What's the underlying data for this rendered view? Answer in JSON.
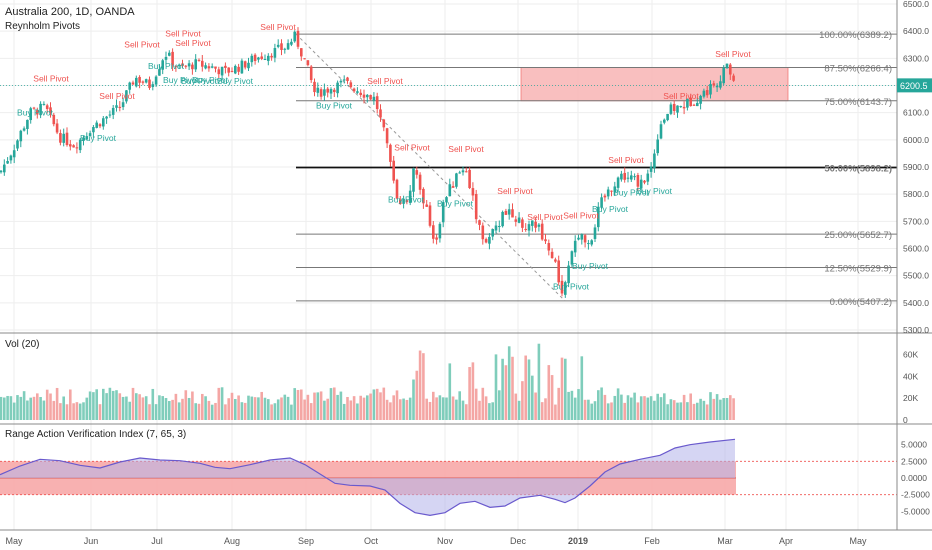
{
  "header": {
    "symbol": "Australia 200, 1D, OANDA",
    "indicator": "Reynholm Pivots"
  },
  "colors": {
    "up": "#26a69a",
    "down": "#ef5350",
    "sell_label": "#ef5350",
    "buy_label": "#26a69a",
    "zone_fill": "#f8b4b4",
    "osc_fill": "#b3b3ea",
    "osc_line": "#6a5acd",
    "grid": "#eeeeee",
    "axis_text": "#555555",
    "price_tag": "#26a69a"
  },
  "chart_data": [
    {
      "type": "candlestick",
      "ylim": [
        5300,
        6500
      ],
      "y_ticks": [
        "6500.0",
        "6400.0",
        "6300.0",
        "6200.0",
        "6100.0",
        "6000.0",
        "5900.0",
        "5800.0",
        "5700.0",
        "5600.0",
        "5500.0",
        "5400.0",
        "5300.0"
      ],
      "x_ticks": [
        "May",
        "Jun",
        "Jul",
        "Aug",
        "Sep",
        "Oct",
        "Nov",
        "Dec",
        "2019",
        "Feb",
        "Mar",
        "Apr",
        "May"
      ],
      "last_price": "6200.5",
      "close_path": [
        [
          0,
          5880
        ],
        [
          15,
          5980
        ],
        [
          30,
          6100
        ],
        [
          45,
          6120
        ],
        [
          60,
          6010
        ],
        [
          75,
          5980
        ],
        [
          90,
          6040
        ],
        [
          105,
          6080
        ],
        [
          120,
          6120
        ],
        [
          135,
          6230
        ],
        [
          150,
          6200
        ],
        [
          165,
          6320
        ],
        [
          180,
          6260
        ],
        [
          195,
          6280
        ],
        [
          210,
          6270
        ],
        [
          225,
          6250
        ],
        [
          240,
          6270
        ],
        [
          255,
          6300
        ],
        [
          270,
          6320
        ],
        [
          285,
          6340
        ],
        [
          295,
          6380
        ],
        [
          305,
          6290
        ],
        [
          315,
          6170
        ],
        [
          330,
          6190
        ],
        [
          345,
          6210
        ],
        [
          360,
          6180
        ],
        [
          375,
          6150
        ],
        [
          385,
          6010
        ],
        [
          395,
          5810
        ],
        [
          405,
          5760
        ],
        [
          415,
          5900
        ],
        [
          425,
          5760
        ],
        [
          435,
          5620
        ],
        [
          445,
          5790
        ],
        [
          455,
          5850
        ],
        [
          465,
          5910
        ],
        [
          475,
          5740
        ],
        [
          485,
          5620
        ],
        [
          495,
          5670
        ],
        [
          505,
          5740
        ],
        [
          515,
          5720
        ],
        [
          525,
          5660
        ],
        [
          535,
          5700
        ],
        [
          545,
          5630
        ],
        [
          555,
          5540
        ],
        [
          563,
          5420
        ],
        [
          570,
          5560
        ],
        [
          580,
          5660
        ],
        [
          590,
          5620
        ],
        [
          600,
          5760
        ],
        [
          610,
          5820
        ],
        [
          620,
          5870
        ],
        [
          630,
          5860
        ],
        [
          640,
          5840
        ],
        [
          650,
          5880
        ],
        [
          660,
          6060
        ],
        [
          670,
          6110
        ],
        [
          680,
          6120
        ],
        [
          690,
          6140
        ],
        [
          700,
          6160
        ],
        [
          710,
          6190
        ],
        [
          720,
          6230
        ],
        [
          728,
          6270
        ],
        [
          736,
          6200
        ]
      ],
      "fib_levels": [
        {
          "label": "100.00%(6389.2)",
          "value": 6389.2
        },
        {
          "label": "87.50%(6266.4)",
          "value": 6266.4
        },
        {
          "label": "75.00%(6143.7)",
          "value": 6143.7
        },
        {
          "label": "50.00%(5898.2)",
          "value": 5898.2,
          "bold": true
        },
        {
          "label": "25.00%(5652.7)",
          "value": 5652.7
        },
        {
          "label": "12.50%(5529.9)",
          "value": 5529.9
        },
        {
          "label": "0.00%(5407.2)",
          "value": 5407.2
        }
      ],
      "zone": {
        "from_price": 6143.7,
        "to_price": 6266.4
      },
      "pivots": [
        {
          "type": "Sell Pivot",
          "x": 51,
          "price": 6215
        },
        {
          "type": "Buy Pivot",
          "x": 35,
          "price": 6090
        },
        {
          "type": "Sell Pivot",
          "x": 117,
          "price": 6150
        },
        {
          "type": "Buy Pivot",
          "x": 98,
          "price": 5995
        },
        {
          "type": "Sell Pivot",
          "x": 142,
          "price": 6340
        },
        {
          "type": "Sell Pivot",
          "x": 183,
          "price": 6380
        },
        {
          "type": "Sell Pivot",
          "x": 193,
          "price": 6345
        },
        {
          "type": "Buy Pivot",
          "x": 166,
          "price": 6260
        },
        {
          "type": "Buy Pivot",
          "x": 181,
          "price": 6210
        },
        {
          "type": "Buy Pivot",
          "x": 199,
          "price": 6205
        },
        {
          "type": "Buy Pivot",
          "x": 210,
          "price": 6210
        },
        {
          "type": "Sell Pivot",
          "x": 278,
          "price": 6405
        },
        {
          "type": "Buy Pivot",
          "x": 235,
          "price": 6205
        },
        {
          "type": "Buy Pivot",
          "x": 334,
          "price": 6115
        },
        {
          "type": "Sell Pivot",
          "x": 385,
          "price": 6205
        },
        {
          "type": "Sell Pivot",
          "x": 412,
          "price": 5960
        },
        {
          "type": "Sell Pivot",
          "x": 466,
          "price": 5955
        },
        {
          "type": "Buy Pivot",
          "x": 406,
          "price": 5770
        },
        {
          "type": "Buy Pivot",
          "x": 455,
          "price": 5755
        },
        {
          "type": "Sell Pivot",
          "x": 515,
          "price": 5800
        },
        {
          "type": "Sell Pivot",
          "x": 545,
          "price": 5705
        },
        {
          "type": "Sell Pivot",
          "x": 581,
          "price": 5710
        },
        {
          "type": "Buy Pivot",
          "x": 590,
          "price": 5525
        },
        {
          "type": "Buy Pivot",
          "x": 571,
          "price": 5450
        },
        {
          "type": "Sell Pivot",
          "x": 626,
          "price": 5915
        },
        {
          "type": "Buy Pivot",
          "x": 610,
          "price": 5735
        },
        {
          "type": "Buy Pivot",
          "x": 631,
          "price": 5795
        },
        {
          "type": "Buy Pivot",
          "x": 654,
          "price": 5800
        },
        {
          "type": "Sell Pivot",
          "x": 681,
          "price": 6150
        },
        {
          "type": "Sell Pivot",
          "x": 733,
          "price": 6305
        }
      ]
    },
    {
      "type": "bar",
      "title": "Vol (20)",
      "ylim": [
        0,
        75000
      ],
      "y_ticks": [
        "60K",
        "40K",
        "20K",
        "0"
      ]
    },
    {
      "type": "area",
      "title": "Range Action Verification Index (7, 65, 3)",
      "ylim": [
        -7.5,
        7.5
      ],
      "y_ticks": [
        "5.0000",
        "2.5000",
        "0.0000",
        "-2.5000",
        "-5.0000"
      ],
      "band": [
        -2.5,
        2.5
      ],
      "points": [
        [
          0,
          0.5
        ],
        [
          20,
          1.8
        ],
        [
          40,
          2.8
        ],
        [
          60,
          2.6
        ],
        [
          80,
          1.9
        ],
        [
          100,
          1.5
        ],
        [
          120,
          2.4
        ],
        [
          140,
          3.0
        ],
        [
          160,
          2.7
        ],
        [
          180,
          2.6
        ],
        [
          200,
          2.2
        ],
        [
          215,
          1.6
        ],
        [
          230,
          1.4
        ],
        [
          250,
          2.0
        ],
        [
          270,
          2.7
        ],
        [
          290,
          3.0
        ],
        [
          305,
          2.0
        ],
        [
          320,
          0.6
        ],
        [
          335,
          -0.8
        ],
        [
          350,
          -1.1
        ],
        [
          370,
          -1.2
        ],
        [
          385,
          -1.8
        ],
        [
          400,
          -3.8
        ],
        [
          415,
          -5.2
        ],
        [
          430,
          -5.6
        ],
        [
          445,
          -5.2
        ],
        [
          460,
          -3.8
        ],
        [
          475,
          -3.5
        ],
        [
          490,
          -4.4
        ],
        [
          505,
          -4.2
        ],
        [
          520,
          -3.0
        ],
        [
          540,
          -2.6
        ],
        [
          555,
          -3.2
        ],
        [
          565,
          -3.7
        ],
        [
          575,
          -3.0
        ],
        [
          590,
          -1.2
        ],
        [
          605,
          0.9
        ],
        [
          620,
          2.1
        ],
        [
          640,
          2.8
        ],
        [
          660,
          3.4
        ],
        [
          675,
          4.5
        ],
        [
          690,
          5.0
        ],
        [
          710,
          5.4
        ],
        [
          735,
          5.8
        ]
      ]
    }
  ]
}
